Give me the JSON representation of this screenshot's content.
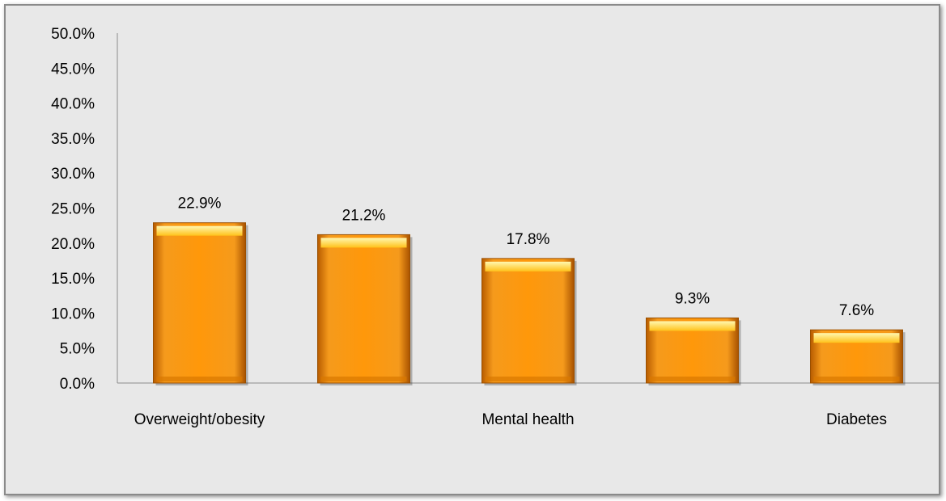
{
  "chart_data": {
    "type": "bar",
    "categories": [
      "Overweight/obesity",
      "",
      "Mental health",
      "",
      "Diabetes"
    ],
    "values": [
      22.9,
      21.2,
      17.8,
      9.3,
      7.6
    ],
    "data_labels": [
      "22.9%",
      "21.2%",
      "17.8%",
      "9.3%",
      "7.6%"
    ],
    "title": "",
    "xlabel": "",
    "ylabel": "",
    "ylim": [
      0,
      50
    ],
    "y_ticks": [
      "0.0%",
      "5.0%",
      "10.0%",
      "15.0%",
      "20.0%",
      "25.0%",
      "30.0%",
      "35.0%",
      "40.0%",
      "45.0%",
      "50.0%"
    ],
    "grid": false,
    "legend": "none",
    "bar_color": "#f5920a",
    "background_color": "#e8e8e8"
  }
}
